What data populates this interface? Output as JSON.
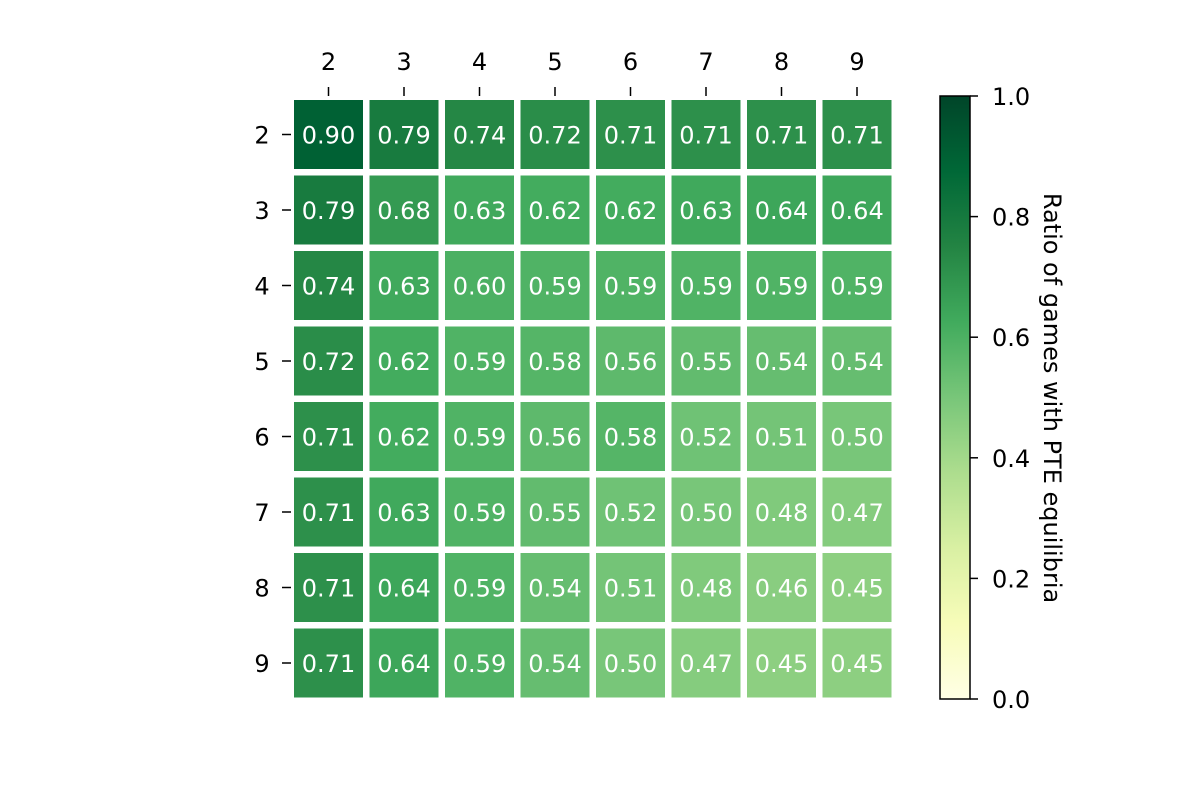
{
  "chart_data": {
    "type": "heatmap",
    "x_categories": [
      "2",
      "3",
      "4",
      "5",
      "6",
      "7",
      "8",
      "9"
    ],
    "y_categories": [
      "2",
      "3",
      "4",
      "5",
      "6",
      "7",
      "8",
      "9"
    ],
    "values": [
      [
        0.9,
        0.79,
        0.74,
        0.72,
        0.71,
        0.71,
        0.71,
        0.71
      ],
      [
        0.79,
        0.68,
        0.63,
        0.62,
        0.62,
        0.63,
        0.64,
        0.64
      ],
      [
        0.74,
        0.63,
        0.6,
        0.59,
        0.59,
        0.59,
        0.59,
        0.59
      ],
      [
        0.72,
        0.62,
        0.59,
        0.58,
        0.56,
        0.55,
        0.54,
        0.54
      ],
      [
        0.71,
        0.62,
        0.59,
        0.56,
        0.58,
        0.52,
        0.51,
        0.5
      ],
      [
        0.71,
        0.63,
        0.59,
        0.55,
        0.52,
        0.5,
        0.48,
        0.47
      ],
      [
        0.71,
        0.64,
        0.59,
        0.54,
        0.51,
        0.48,
        0.46,
        0.45
      ],
      [
        0.71,
        0.64,
        0.59,
        0.54,
        0.5,
        0.47,
        0.45,
        0.45
      ]
    ],
    "value_labels": [
      [
        "0.90",
        "0.79",
        "0.74",
        "0.72",
        "0.71",
        "0.71",
        "0.71",
        "0.71"
      ],
      [
        "0.79",
        "0.68",
        "0.63",
        "0.62",
        "0.62",
        "0.63",
        "0.64",
        "0.64"
      ],
      [
        "0.74",
        "0.63",
        "0.60",
        "0.59",
        "0.59",
        "0.59",
        "0.59",
        "0.59"
      ],
      [
        "0.72",
        "0.62",
        "0.59",
        "0.58",
        "0.56",
        "0.55",
        "0.54",
        "0.54"
      ],
      [
        "0.71",
        "0.62",
        "0.59",
        "0.56",
        "0.58",
        "0.52",
        "0.51",
        "0.50"
      ],
      [
        "0.71",
        "0.63",
        "0.59",
        "0.55",
        "0.52",
        "0.50",
        "0.48",
        "0.47"
      ],
      [
        "0.71",
        "0.64",
        "0.59",
        "0.54",
        "0.51",
        "0.48",
        "0.46",
        "0.45"
      ],
      [
        "0.71",
        "0.64",
        "0.59",
        "0.54",
        "0.50",
        "0.47",
        "0.45",
        "0.45"
      ]
    ],
    "x_axis_position": "top",
    "colorbar": {
      "label": "Ratio of games with PTE equilibria",
      "range": [
        0.0,
        1.0
      ],
      "ticks": [
        0.0,
        0.2,
        0.4,
        0.6,
        0.8,
        1.0
      ],
      "tick_labels": [
        "0.0",
        "0.2",
        "0.4",
        "0.6",
        "0.8",
        "1.0"
      ],
      "colormap": "YlGn",
      "position": "right"
    },
    "grid": false
  }
}
